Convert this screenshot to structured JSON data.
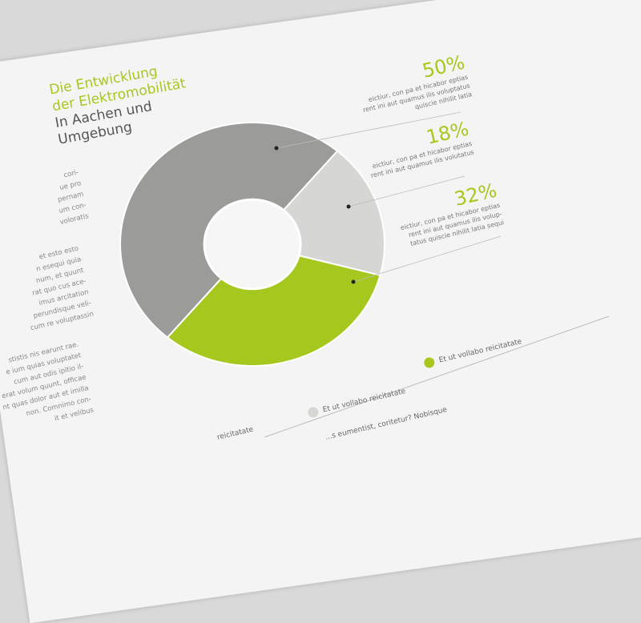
{
  "title": {
    "line1": "Die Entwicklung",
    "line2": "der Elektromobilität",
    "line3": "In Aachen und",
    "line4": "Umgebung"
  },
  "colors": {
    "accent": "#a6c81e",
    "dark_gray": "#9b9b99",
    "light_gray": "#d6d6d4"
  },
  "chart_data": {
    "type": "pie",
    "donut": true,
    "slices": [
      {
        "value": 50,
        "label": "50%",
        "color": "#9b9b99",
        "desc": [
          "eictiur, con pa et hicabor eptias",
          "rent ini aut quamus ilis voluptatus",
          "quiscie nihilit latia"
        ]
      },
      {
        "value": 18,
        "label": "18%",
        "color": "#d6d6d4",
        "desc": [
          "eictiur, con pa et hicabor eptias",
          "rent ini aut quamus ilis volutatus"
        ]
      },
      {
        "value": 32,
        "label": "32%",
        "color": "#a6c81e",
        "desc": [
          "eictiur, con pa et hicabor eptias",
          "rent ini aut quamus ilis volup-",
          "tatus quiscie nihilit latia sequi"
        ]
      }
    ]
  },
  "legend": [
    {
      "label": "reicitatate"
    },
    {
      "label": "Et ut vollabo reicitatate"
    },
    {
      "label": "Et ut vollabo reicitatate"
    }
  ],
  "footnote": "...s eumentist, coritetur? Nobisque",
  "body_text": [
    [
      "cori-",
      "ue pro",
      "pernam",
      "um con-",
      "voloratis"
    ],
    [
      "et esto esto",
      "n esequi quia",
      "num, et quunt",
      "rat quo cus ace-",
      "imus arcitation",
      "perundisque veli-",
      "cum re voluptassin"
    ],
    [
      "stistis nis earunt rae.",
      "e ium quias voluptatet",
      "cum aut odis ipitio il-",
      "erat volum quunt, officae",
      "nt quas dolor aut et imilla",
      "non. Comnimo con-",
      "it et velibus"
    ]
  ]
}
